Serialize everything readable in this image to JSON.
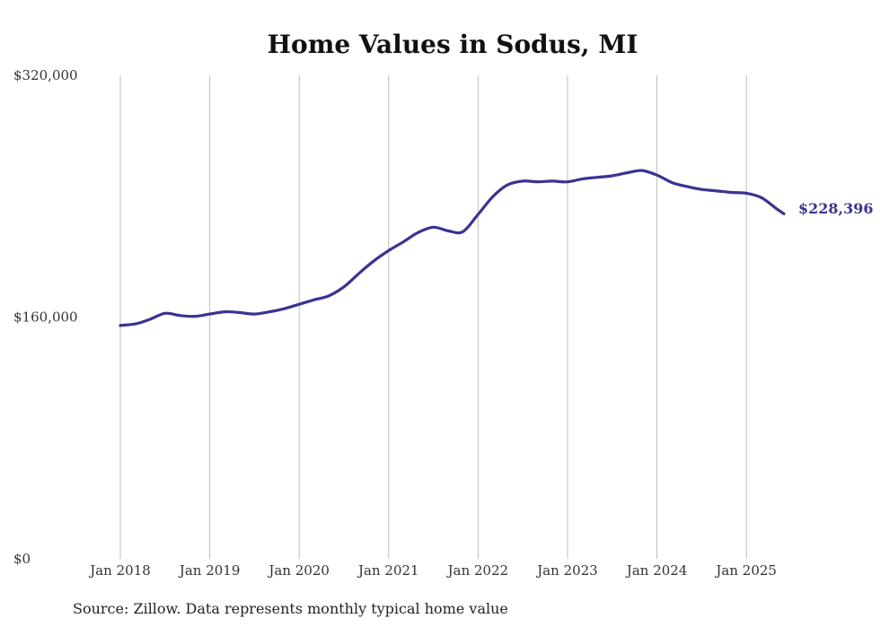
{
  "chart_data": {
    "type": "line",
    "title": "Home Values in Sodus, MI",
    "xlabel": "",
    "ylabel": "",
    "ylim": [
      0,
      320000
    ],
    "yticks": [
      {
        "value": 0,
        "label": "$0"
      },
      {
        "value": 160000,
        "label": "$160,000"
      },
      {
        "value": 320000,
        "label": "$320,000"
      }
    ],
    "xticks": [
      {
        "value": 2018.0,
        "label": "Jan 2018"
      },
      {
        "value": 2019.0,
        "label": "Jan 2019"
      },
      {
        "value": 2020.0,
        "label": "Jan 2020"
      },
      {
        "value": 2021.0,
        "label": "Jan 2021"
      },
      {
        "value": 2022.0,
        "label": "Jan 2022"
      },
      {
        "value": 2023.0,
        "label": "Jan 2023"
      },
      {
        "value": 2024.0,
        "label": "Jan 2024"
      },
      {
        "value": 2025.0,
        "label": "Jan 2025"
      }
    ],
    "xlim": [
      2018.0,
      2025.42
    ],
    "grid": "vertical",
    "series": [
      {
        "name": "Typical home value",
        "color": "#3a3392",
        "x": [
          2018.0,
          2018.17,
          2018.33,
          2018.5,
          2018.67,
          2018.83,
          2019.0,
          2019.17,
          2019.33,
          2019.5,
          2019.67,
          2019.83,
          2020.0,
          2020.17,
          2020.33,
          2020.5,
          2020.67,
          2020.83,
          2021.0,
          2021.17,
          2021.33,
          2021.5,
          2021.67,
          2021.83,
          2022.0,
          2022.17,
          2022.33,
          2022.5,
          2022.67,
          2022.83,
          2023.0,
          2023.17,
          2023.33,
          2023.5,
          2023.67,
          2023.83,
          2024.0,
          2024.17,
          2024.33,
          2024.5,
          2024.67,
          2024.83,
          2025.0,
          2025.17,
          2025.33,
          2025.42
        ],
        "values": [
          154500,
          155500,
          158500,
          162500,
          161000,
          160500,
          162000,
          163500,
          163000,
          162000,
          163500,
          165500,
          168500,
          171500,
          174000,
          180000,
          189000,
          197000,
          204000,
          210000,
          216000,
          219500,
          217000,
          216500,
          228000,
          240000,
          247500,
          250000,
          249500,
          250000,
          249500,
          251500,
          252500,
          253500,
          255500,
          257000,
          254000,
          249000,
          246500,
          244500,
          243500,
          242500,
          242000,
          239000,
          232000,
          228396
        ]
      }
    ],
    "end_label": "$228,396"
  },
  "footer": {
    "source": "Source: Zillow. Data represents monthly typical home value"
  }
}
